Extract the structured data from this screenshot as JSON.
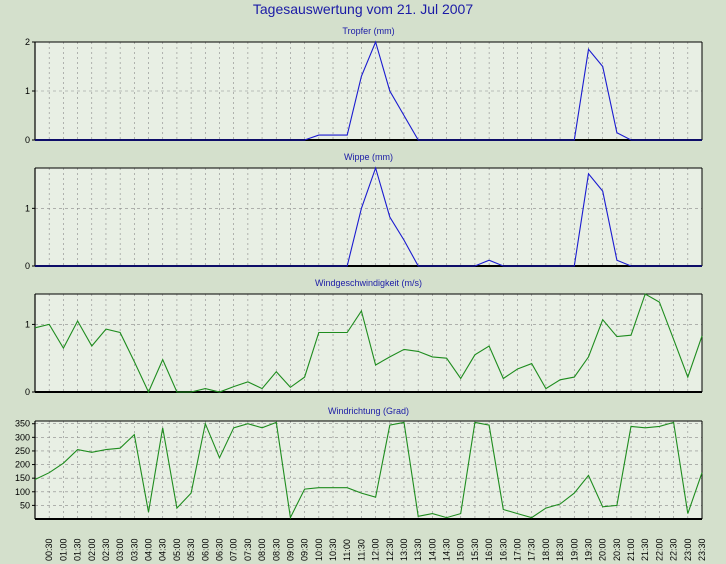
{
  "title": "Tagesauswertung vom 21. Jul 2007",
  "colors": {
    "background": "#d4e0cc",
    "rain": "#1a1ad0",
    "wind": "#1e8c1e",
    "title": "#1a1aa6"
  },
  "x_labels": [
    "00:30",
    "01:00",
    "01:30",
    "02:00",
    "02:30",
    "03:00",
    "03:30",
    "04:00",
    "04:30",
    "05:00",
    "05:30",
    "06:00",
    "06:30",
    "07:00",
    "07:30",
    "08:00",
    "08:30",
    "09:00",
    "09:30",
    "10:00",
    "10:30",
    "11:00",
    "11:30",
    "12:00",
    "12:30",
    "13:00",
    "13:30",
    "14:00",
    "14:30",
    "15:00",
    "15:30",
    "16:00",
    "16:30",
    "17:00",
    "17:30",
    "18:00",
    "18:30",
    "19:00",
    "19:30",
    "20:00",
    "20:30",
    "21:00",
    "21:30",
    "22:00",
    "22:30",
    "23:00",
    "23:30"
  ],
  "chart_data": [
    {
      "type": "line",
      "title": "Tropfer (mm)",
      "ylim": [
        0,
        2
      ],
      "yticks": [
        "0",
        "1",
        "2"
      ],
      "grid": true,
      "series": [
        {
          "values": [
            0,
            0,
            0,
            0,
            0,
            0,
            0,
            0,
            0,
            0,
            0,
            0,
            0,
            0,
            0,
            0,
            0,
            0,
            0,
            0,
            0.1,
            0.1,
            0.1,
            1.3,
            2.0,
            1.0,
            0.5,
            0,
            0,
            0,
            0,
            0,
            0,
            0,
            0,
            0,
            0,
            0,
            0,
            1.85,
            1.5,
            0.15,
            0,
            0,
            0,
            0,
            0,
            0
          ]
        }
      ]
    },
    {
      "type": "line",
      "title": "Wippe (mm)",
      "ylim": [
        0,
        1.7
      ],
      "yticks": [
        "0",
        "1"
      ],
      "grid": true,
      "series": [
        {
          "values": [
            0,
            0,
            0,
            0,
            0,
            0,
            0,
            0,
            0,
            0,
            0,
            0,
            0,
            0,
            0,
            0,
            0,
            0,
            0,
            0,
            0,
            0,
            0,
            1.0,
            1.7,
            0.85,
            0.45,
            0,
            0,
            0,
            0,
            0,
            0.1,
            0,
            0,
            0,
            0,
            0,
            0,
            1.6,
            1.3,
            0.1,
            0,
            0,
            0,
            0,
            0,
            0
          ]
        }
      ]
    },
    {
      "type": "line",
      "title": "Windgeschwindigkeit (m/s)",
      "ylim": [
        0,
        1.45
      ],
      "yticks": [
        "0",
        "1"
      ],
      "grid": true,
      "series": [
        {
          "values": [
            0.95,
            1.0,
            0.65,
            1.05,
            0.68,
            0.93,
            0.88,
            0.45,
            0.0,
            0.48,
            0.0,
            0.0,
            0.05,
            0.0,
            0.08,
            0.15,
            0.05,
            0.3,
            0.07,
            0.22,
            0.88,
            0.88,
            0.88,
            1.2,
            0.4,
            0.52,
            0.63,
            0.6,
            0.52,
            0.5,
            0.2,
            0.55,
            0.68,
            0.2,
            0.34,
            0.42,
            0.05,
            0.18,
            0.22,
            0.52,
            1.07,
            0.82,
            0.84,
            1.45,
            1.33,
            0.78,
            0.22,
            0.83
          ]
        }
      ]
    },
    {
      "type": "line",
      "title": "Windrichtung (Grad)",
      "ylim": [
        0,
        360
      ],
      "yticks": [
        "50",
        "100",
        "150",
        "200",
        "250",
        "300",
        "350"
      ],
      "grid": true,
      "series": [
        {
          "values": [
            145,
            170,
            205,
            255,
            245,
            255,
            260,
            310,
            25,
            335,
            40,
            95,
            350,
            225,
            335,
            350,
            335,
            355,
            5,
            110,
            115,
            115,
            115,
            95,
            80,
            345,
            355,
            10,
            20,
            5,
            20,
            355,
            345,
            35,
            20,
            5,
            40,
            55,
            95,
            160,
            45,
            50,
            340,
            335,
            340,
            355,
            20,
            170
          ]
        }
      ]
    }
  ]
}
